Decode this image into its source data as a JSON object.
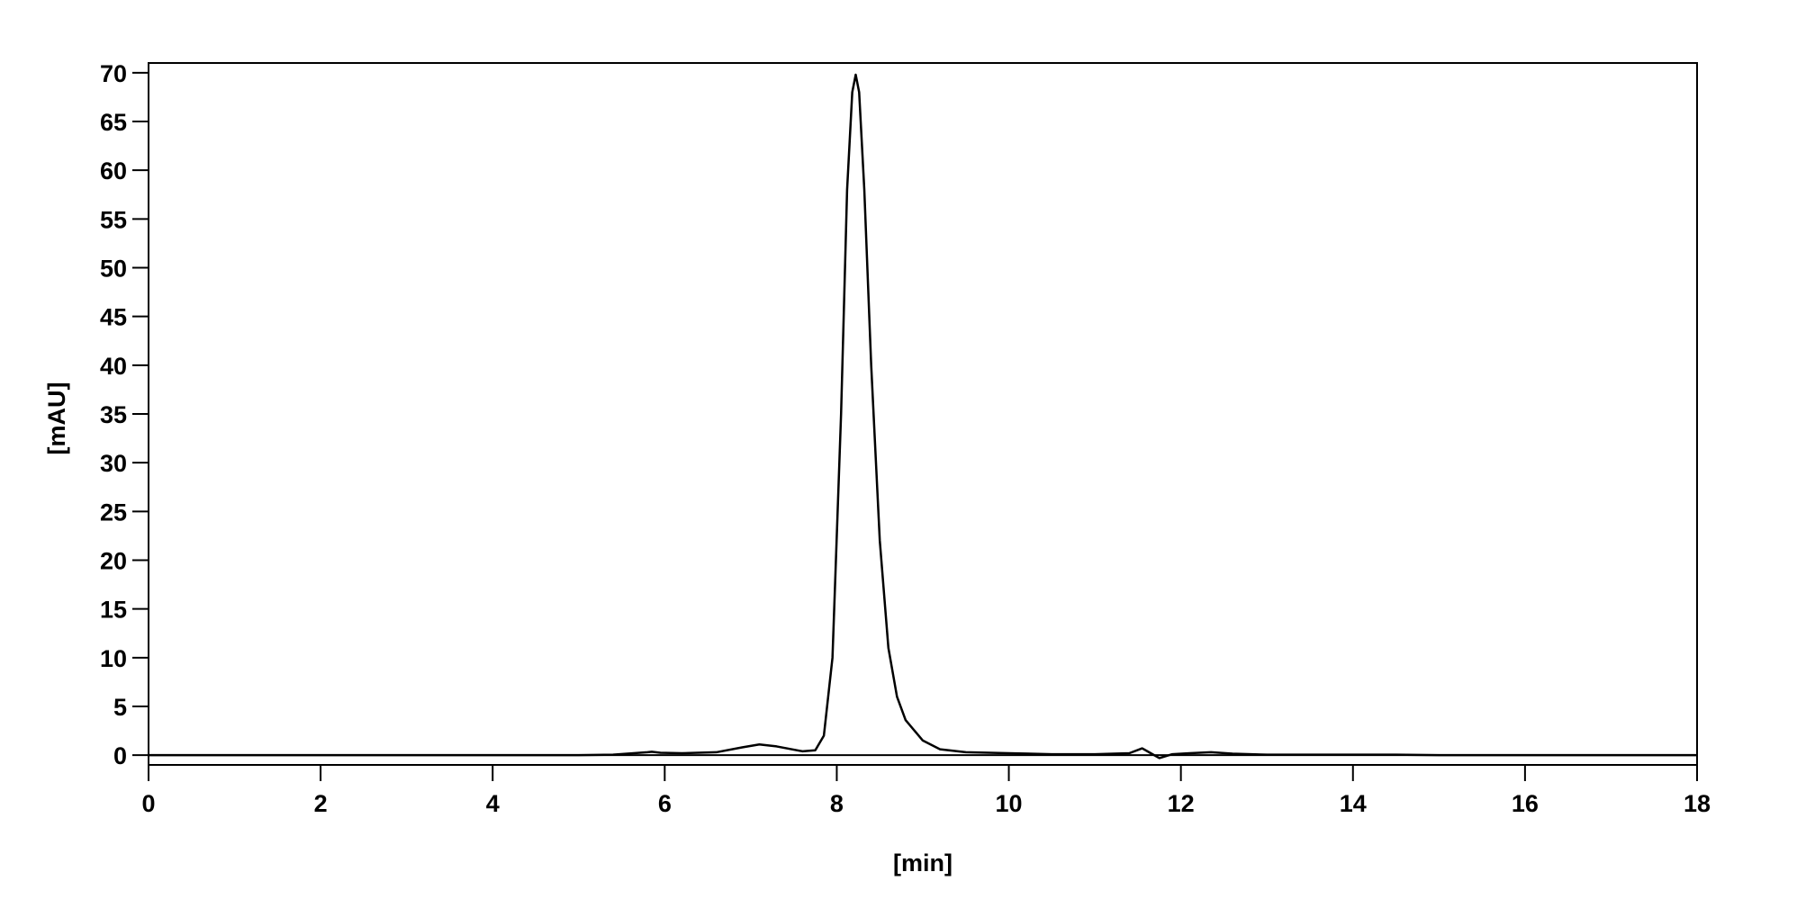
{
  "chart_data": {
    "type": "line",
    "x_label": "[min]",
    "y_label": "[mAU]",
    "x": [
      0,
      5,
      5.4,
      5.8,
      5.85,
      5.95,
      6.2,
      6.6,
      6.9,
      7.1,
      7.3,
      7.6,
      7.75,
      7.85,
      7.95,
      8.05,
      8.12,
      8.18,
      8.22,
      8.26,
      8.32,
      8.4,
      8.5,
      8.6,
      8.7,
      8.8,
      9.0,
      9.2,
      9.5,
      10,
      10.5,
      11,
      11.4,
      11.55,
      11.65,
      11.75,
      11.9,
      12.1,
      12.35,
      12.6,
      13,
      14.5,
      15,
      18
    ],
    "values": [
      0,
      0,
      0.05,
      0.3,
      0.35,
      0.25,
      0.2,
      0.3,
      0.8,
      1.1,
      0.9,
      0.4,
      0.5,
      2,
      10,
      35,
      58,
      68,
      69.8,
      68,
      58,
      40,
      22,
      11,
      6,
      3.6,
      1.5,
      0.6,
      0.3,
      0.2,
      0.1,
      0.1,
      0.2,
      0.7,
      0.2,
      -0.3,
      0.1,
      0.2,
      0.3,
      0.15,
      0.05,
      0.05,
      0,
      0
    ],
    "color": "#000000",
    "xlim": [
      0,
      18
    ],
    "xticks": [
      0,
      2,
      4,
      6,
      8,
      10,
      12,
      14,
      16,
      18
    ],
    "ylim": [
      -1,
      71
    ],
    "yticks": [
      0,
      5,
      10,
      15,
      20,
      25,
      30,
      35,
      40,
      45,
      50,
      55,
      60,
      65,
      70
    ]
  }
}
